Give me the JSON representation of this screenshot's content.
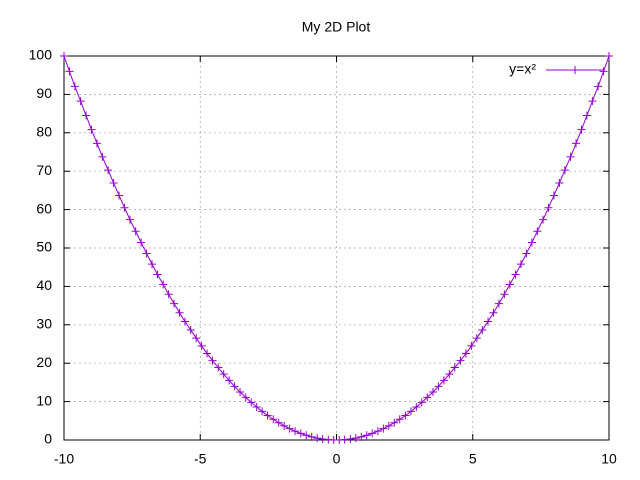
{
  "chart_data": {
    "type": "line",
    "title": "My 2D Plot",
    "x": [
      -10,
      -9.8,
      -9.6,
      -9.39,
      -9.19,
      -8.99,
      -8.79,
      -8.59,
      -8.38,
      -8.18,
      -7.98,
      -7.78,
      -7.58,
      -7.37,
      -7.17,
      -6.97,
      -6.77,
      -6.57,
      -6.36,
      -6.16,
      -5.96,
      -5.76,
      -5.56,
      -5.35,
      -5.15,
      -4.95,
      -4.75,
      -4.55,
      -4.34,
      -4.14,
      -3.94,
      -3.74,
      -3.54,
      -3.33,
      -3.13,
      -2.93,
      -2.73,
      -2.53,
      -2.32,
      -2.12,
      -1.92,
      -1.72,
      -1.52,
      -1.31,
      -1.11,
      -0.91,
      -0.71,
      -0.51,
      -0.3,
      -0.1,
      0.1,
      0.3,
      0.51,
      0.71,
      0.91,
      1.11,
      1.31,
      1.52,
      1.72,
      1.92,
      2.12,
      2.32,
      2.53,
      2.73,
      2.93,
      3.13,
      3.33,
      3.54,
      3.74,
      3.94,
      4.14,
      4.34,
      4.55,
      4.75,
      4.95,
      5.15,
      5.35,
      5.56,
      5.76,
      5.96,
      6.16,
      6.36,
      6.57,
      6.77,
      6.97,
      7.17,
      7.37,
      7.58,
      7.78,
      7.98,
      8.18,
      8.38,
      8.59,
      8.79,
      8.99,
      9.19,
      9.39,
      9.6,
      9.8,
      10
    ],
    "series": [
      {
        "name": "y=x²",
        "color": "#9400d3",
        "values": [
          100,
          96.0,
          92.08,
          88.25,
          84.49,
          80.82,
          77.23,
          73.72,
          70.29,
          66.94,
          63.68,
          60.49,
          57.39,
          54.37,
          51.43,
          48.58,
          45.8,
          43.11,
          40.5,
          37.97,
          35.52,
          33.15,
          30.86,
          28.66,
          26.54,
          24.5,
          22.54,
          20.66,
          18.87,
          17.15,
          15.52,
          13.97,
          12.5,
          11.11,
          9.81,
          8.58,
          7.44,
          6.38,
          5.4,
          4.5,
          3.68,
          2.95,
          2.3,
          1.72,
          1.23,
          0.83,
          0.5,
          0.26,
          0.09,
          0.01,
          0.01,
          0.09,
          0.26,
          0.5,
          0.83,
          1.23,
          1.72,
          2.3,
          2.95,
          3.68,
          4.5,
          5.4,
          6.38,
          7.44,
          8.58,
          9.81,
          11.11,
          12.5,
          13.97,
          15.52,
          17.15,
          18.87,
          20.66,
          22.54,
          24.5,
          26.54,
          28.66,
          30.86,
          33.15,
          35.52,
          37.97,
          40.5,
          43.11,
          45.8,
          48.58,
          51.43,
          54.37,
          57.39,
          60.49,
          63.68,
          66.94,
          70.29,
          73.72,
          77.23,
          80.82,
          84.49,
          88.25,
          92.08,
          96.0,
          100
        ]
      }
    ],
    "xlim": [
      -10,
      10
    ],
    "xticks": [
      -10,
      -5,
      0,
      5,
      10
    ],
    "ylim": [
      0,
      100
    ],
    "yticks": [
      0,
      10,
      20,
      30,
      40,
      50,
      60,
      70,
      80,
      90,
      100
    ],
    "grid": true,
    "legend": "top-right"
  }
}
